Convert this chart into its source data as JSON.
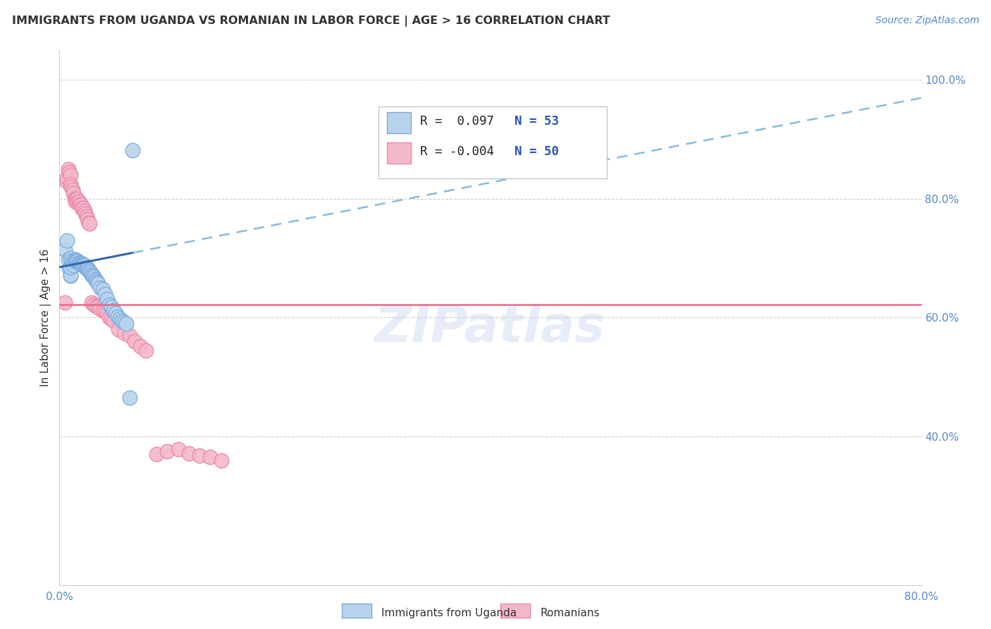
{
  "title": "IMMIGRANTS FROM UGANDA VS ROMANIAN IN LABOR FORCE | AGE > 16 CORRELATION CHART",
  "source_text": "Source: ZipAtlas.com",
  "ylabel": "In Labor Force | Age > 16",
  "xlim": [
    0.0,
    0.8
  ],
  "ylim": [
    0.15,
    1.05
  ],
  "y_ticks_right": [
    1.0,
    0.8,
    0.6,
    0.4
  ],
  "y_tick_labels_right": [
    "100.0%",
    "80.0%",
    "60.0%",
    "40.0%"
  ],
  "background_color": "#ffffff",
  "uganda_color": "#b8d4ec",
  "romanian_color": "#f5b8c8",
  "uganda_edge_color": "#7aaadd",
  "romanian_edge_color": "#e888a8",
  "trend_uganda_solid_color": "#3366aa",
  "trend_uganda_dash_color": "#88bbdd",
  "trend_romanian_color": "#ee6688",
  "legend_R_uganda": "R =  0.097",
  "legend_N_uganda": "N = 53",
  "legend_R_romanian": "R = -0.004",
  "legend_N_romanian": "N = 50",
  "watermark": "ZIPatlas",
  "grid_color": "#cccccc",
  "uganda_data_x": [
    0.005,
    0.007,
    0.008,
    0.009,
    0.01,
    0.01,
    0.01,
    0.01,
    0.011,
    0.012,
    0.013,
    0.014,
    0.015,
    0.015,
    0.016,
    0.017,
    0.018,
    0.019,
    0.02,
    0.02,
    0.021,
    0.022,
    0.022,
    0.023,
    0.024,
    0.025,
    0.025,
    0.026,
    0.027,
    0.028,
    0.029,
    0.03,
    0.031,
    0.032,
    0.033,
    0.034,
    0.035,
    0.036,
    0.038,
    0.04,
    0.042,
    0.044,
    0.046,
    0.048,
    0.05,
    0.052,
    0.054,
    0.056,
    0.058,
    0.06,
    0.062,
    0.065,
    0.068
  ],
  "uganda_data_y": [
    0.715,
    0.73,
    0.698,
    0.682,
    0.67,
    0.672,
    0.685,
    0.7,
    0.695,
    0.692,
    0.688,
    0.695,
    0.698,
    0.695,
    0.695,
    0.695,
    0.693,
    0.692,
    0.692,
    0.69,
    0.69,
    0.69,
    0.688,
    0.688,
    0.685,
    0.685,
    0.682,
    0.682,
    0.68,
    0.678,
    0.675,
    0.672,
    0.67,
    0.668,
    0.665,
    0.662,
    0.66,
    0.658,
    0.65,
    0.648,
    0.64,
    0.632,
    0.622,
    0.618,
    0.612,
    0.608,
    0.602,
    0.598,
    0.595,
    0.592,
    0.59,
    0.465,
    0.882
  ],
  "romanian_data_x": [
    0.005,
    0.006,
    0.007,
    0.008,
    0.009,
    0.01,
    0.01,
    0.011,
    0.012,
    0.013,
    0.014,
    0.015,
    0.015,
    0.016,
    0.017,
    0.018,
    0.019,
    0.02,
    0.021,
    0.022,
    0.023,
    0.024,
    0.025,
    0.026,
    0.027,
    0.028,
    0.03,
    0.032,
    0.034,
    0.036,
    0.038,
    0.04,
    0.042,
    0.044,
    0.046,
    0.048,
    0.05,
    0.055,
    0.06,
    0.065,
    0.07,
    0.075,
    0.08,
    0.09,
    0.1,
    0.11,
    0.12,
    0.13,
    0.14,
    0.15
  ],
  "romanian_data_y": [
    0.625,
    0.83,
    0.835,
    0.85,
    0.845,
    0.84,
    0.825,
    0.82,
    0.815,
    0.81,
    0.8,
    0.8,
    0.795,
    0.8,
    0.795,
    0.795,
    0.79,
    0.79,
    0.785,
    0.785,
    0.78,
    0.775,
    0.77,
    0.765,
    0.76,
    0.758,
    0.625,
    0.622,
    0.62,
    0.618,
    0.615,
    0.612,
    0.61,
    0.608,
    0.6,
    0.598,
    0.595,
    0.58,
    0.575,
    0.57,
    0.56,
    0.552,
    0.545,
    0.37,
    0.375,
    0.378,
    0.372,
    0.368,
    0.365,
    0.36
  ]
}
